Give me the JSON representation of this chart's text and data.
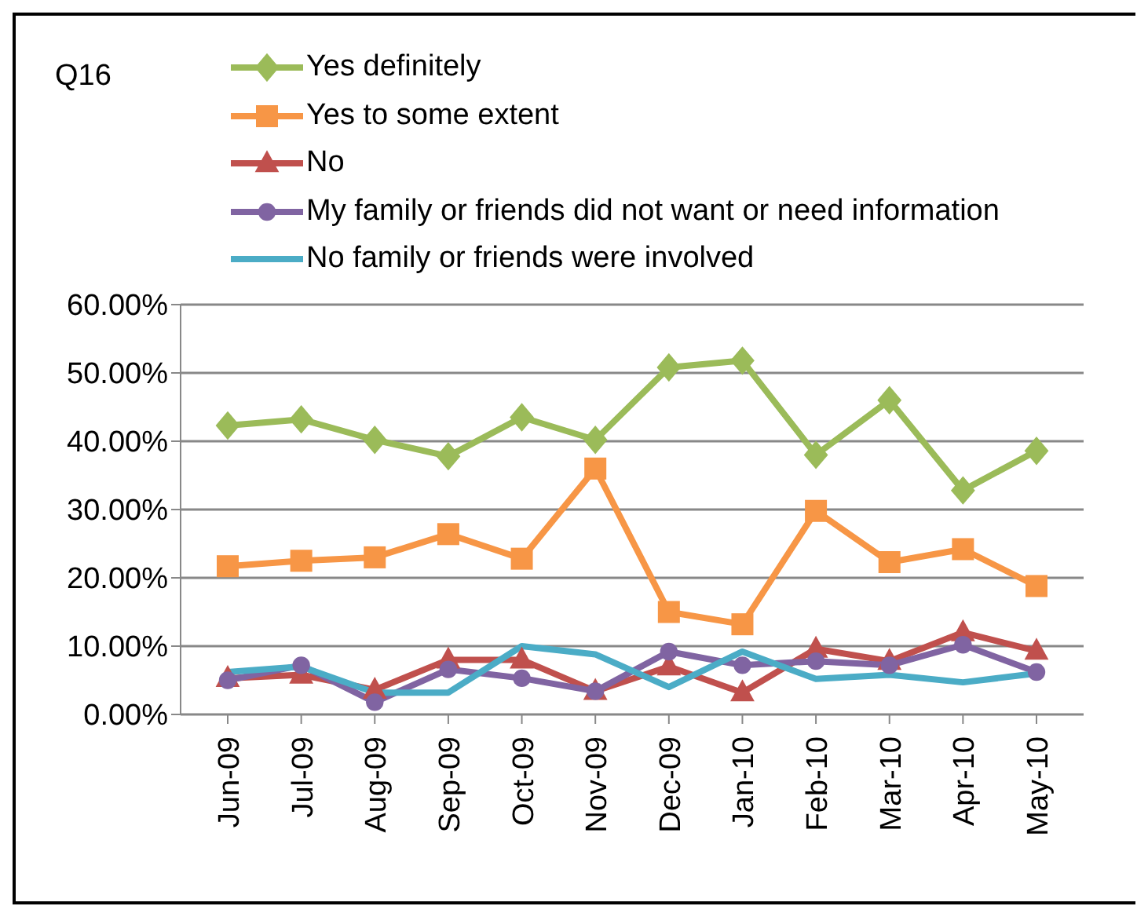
{
  "chart_data": {
    "type": "line",
    "title": "Q16",
    "categories": [
      "Jun-09",
      "Jul-09",
      "Aug-09",
      "Sep-09",
      "Oct-09",
      "Nov-09",
      "Dec-09",
      "Jan-10",
      "Feb-10",
      "Mar-10",
      "Apr-10",
      "May-10"
    ],
    "series": [
      {
        "name": "Yes definitely",
        "color": "#9bbb59",
        "marker": "diamond",
        "values": [
          42.3,
          43.2,
          40.2,
          37.8,
          43.5,
          40.2,
          50.8,
          51.8,
          38,
          46,
          32.8,
          38.6
        ]
      },
      {
        "name": "Yes to some extent",
        "color": "#f79646",
        "marker": "square",
        "values": [
          21.7,
          22.5,
          23,
          26.4,
          22.8,
          36,
          15,
          13.2,
          29.8,
          22.3,
          24.2,
          18.8
        ]
      },
      {
        "name": "No",
        "color": "#c0504d",
        "marker": "triangle",
        "values": [
          5.3,
          5.8,
          3.6,
          8,
          8,
          3.4,
          7,
          3.2,
          9.6,
          7.8,
          12,
          9.3
        ]
      },
      {
        "name": "My family or friends did not want or need information",
        "color": "#8064a2",
        "marker": "circle",
        "values": [
          5,
          7.2,
          1.8,
          6.6,
          5.3,
          3.4,
          9.2,
          7.2,
          7.8,
          7.2,
          10.2,
          6.2
        ]
      },
      {
        "name": "No family or friends were involved",
        "color": "#4bacc6",
        "marker": "none",
        "values": [
          6.2,
          7,
          3.2,
          3.2,
          10,
          8.8,
          4,
          9.2,
          5.2,
          5.8,
          4.7,
          6
        ]
      }
    ],
    "ylim": [
      0,
      60
    ],
    "yticks": [
      {
        "value": 0,
        "label": "0.00%"
      },
      {
        "value": 10,
        "label": "10.00%"
      },
      {
        "value": 20,
        "label": "20.00%"
      },
      {
        "value": 30,
        "label": "30.00%"
      },
      {
        "value": 40,
        "label": "40.00%"
      },
      {
        "value": 50,
        "label": "50.00%"
      },
      {
        "value": 60,
        "label": "60.00%"
      }
    ],
    "grid": "y",
    "legend": "top",
    "line_style": "solid"
  }
}
